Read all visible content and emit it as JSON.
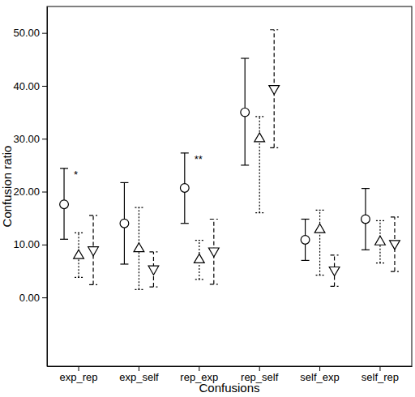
{
  "chart_data": {
    "type": "errorbar",
    "x_label": "Confusions",
    "y_label": "Confusion ratio",
    "categories": [
      "exp_rep",
      "exp_self",
      "rep_exp",
      "rep_self",
      "self_exp",
      "self_rep"
    ],
    "ylim": [
      -13,
      55
    ],
    "yticks": [
      {
        "value": 0,
        "label": "0.00"
      },
      {
        "value": 10,
        "label": "10.00"
      },
      {
        "value": 20,
        "label": "20.00"
      },
      {
        "value": 30,
        "label": "30.00"
      },
      {
        "value": 40,
        "label": "40.00"
      },
      {
        "value": 50,
        "label": "50.00"
      }
    ],
    "grid": false,
    "series": [
      {
        "color": "#000000",
        "marker": "circle",
        "line_style": "solid",
        "values": [
          17.6,
          14.0,
          20.7,
          35.0,
          10.9,
          14.8
        ],
        "lower": [
          11.0,
          6.3,
          14.0,
          25.0,
          7.0,
          9.0
        ],
        "upper": [
          24.4,
          21.7,
          27.3,
          45.2,
          14.8,
          20.6
        ]
      },
      {
        "color": "#000000",
        "marker": "triangle-up",
        "line_style": "dotted",
        "values": [
          7.9,
          9.2,
          7.1,
          30.0,
          12.8,
          10.5
        ],
        "lower": [
          3.8,
          1.5,
          3.4,
          16.0,
          4.2,
          6.5
        ],
        "upper": [
          12.2,
          17.0,
          10.8,
          34.2,
          16.5,
          14.5
        ]
      },
      {
        "color": "#000000",
        "marker": "triangle-down",
        "line_style": "dashed",
        "values": [
          9.0,
          5.4,
          8.8,
          39.5,
          5.2,
          10.2
        ],
        "lower": [
          2.4,
          2.0,
          2.5,
          28.3,
          2.1,
          4.9
        ],
        "upper": [
          15.5,
          8.6,
          14.8,
          50.6,
          8.0,
          15.2
        ]
      }
    ],
    "annotations": [
      {
        "text": "*",
        "x": "exp_rep",
        "y": 22.5
      },
      {
        "text": "**",
        "x": "rep_exp",
        "y": 25.5
      }
    ]
  }
}
